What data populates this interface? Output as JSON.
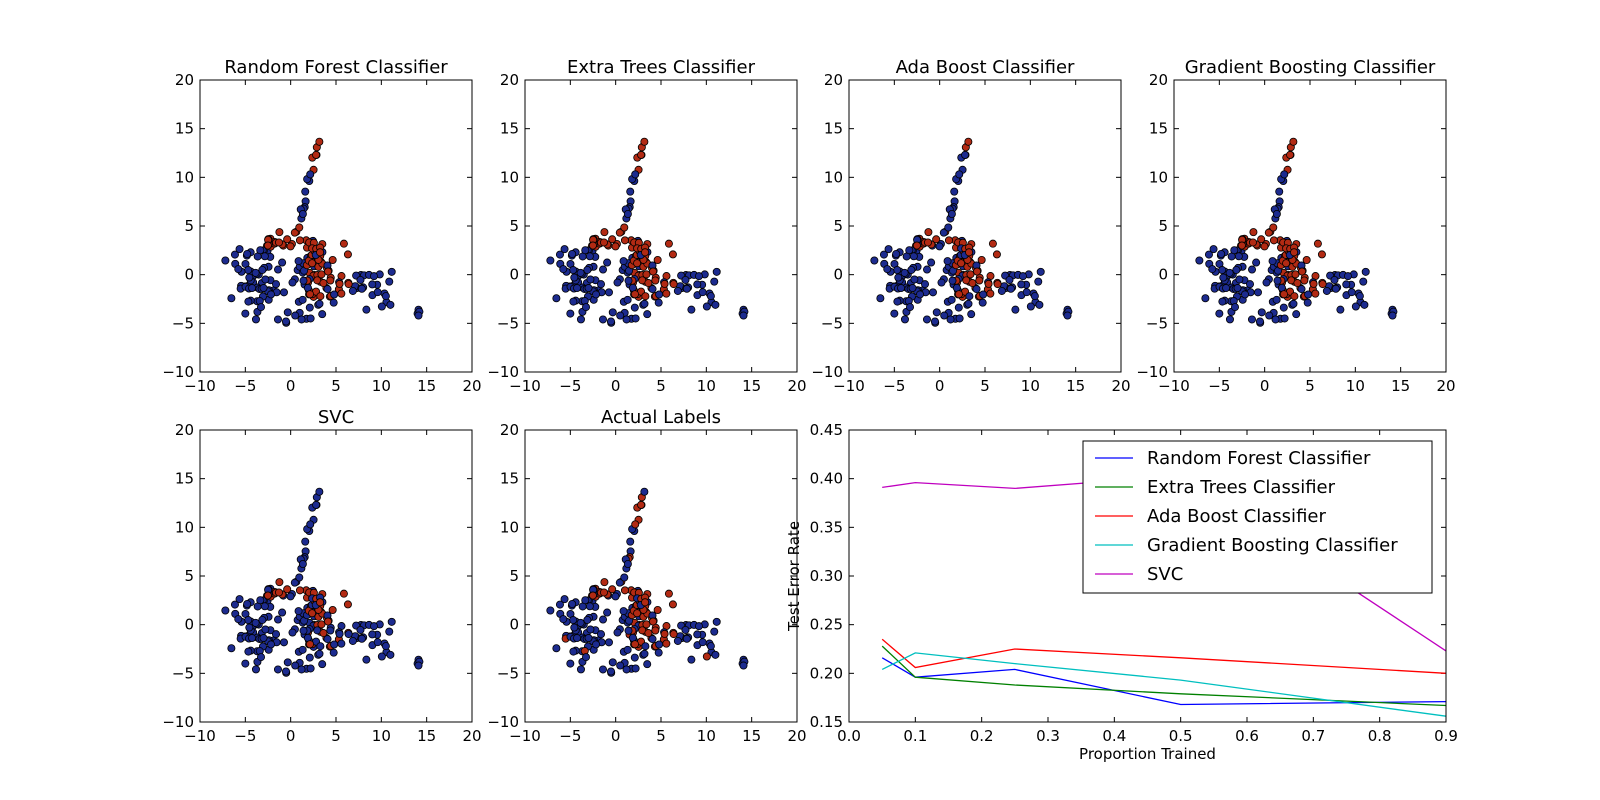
{
  "chart_data": [
    {
      "type": "scatter",
      "title": "Random Forest Classifier",
      "xlabel": "",
      "ylabel": "",
      "xlim": [
        -10,
        20
      ],
      "ylim": [
        -10,
        20
      ],
      "xticks": [
        "−10",
        "−5",
        "0",
        "5",
        "10",
        "15",
        "20"
      ],
      "yticks": [
        "−10",
        "−5",
        "0",
        "5",
        "10",
        "15",
        "20"
      ],
      "grid": false,
      "class_colors": {
        "0": "#1c2b8f",
        "1": "#b22a13"
      }
    },
    {
      "type": "scatter",
      "title": "Extra Trees Classifier",
      "xlabel": "",
      "ylabel": "",
      "xlim": [
        -10,
        20
      ],
      "ylim": [
        -10,
        20
      ],
      "xticks": [
        "−10",
        "−5",
        "0",
        "5",
        "10",
        "15",
        "20"
      ],
      "yticks": [
        "−10",
        "−5",
        "0",
        "5",
        "10",
        "15",
        "20"
      ],
      "grid": false,
      "class_colors": {
        "0": "#1c2b8f",
        "1": "#b22a13"
      }
    },
    {
      "type": "scatter",
      "title": "Ada Boost Classifier",
      "xlabel": "",
      "ylabel": "",
      "xlim": [
        -10,
        20
      ],
      "ylim": [
        -10,
        20
      ],
      "xticks": [
        "−10",
        "−5",
        "0",
        "5",
        "10",
        "15",
        "20"
      ],
      "yticks": [
        "−10",
        "−5",
        "0",
        "5",
        "10",
        "15",
        "20"
      ],
      "grid": false,
      "class_colors": {
        "0": "#1c2b8f",
        "1": "#b22a13"
      }
    },
    {
      "type": "scatter",
      "title": "Gradient Boosting Classifier",
      "xlabel": "",
      "ylabel": "",
      "xlim": [
        -10,
        20
      ],
      "ylim": [
        -10,
        20
      ],
      "xticks": [
        "−10",
        "−5",
        "0",
        "5",
        "10",
        "15",
        "20"
      ],
      "yticks": [
        "−10",
        "−5",
        "0",
        "5",
        "10",
        "15",
        "20"
      ],
      "grid": false,
      "class_colors": {
        "0": "#1c2b8f",
        "1": "#b22a13"
      }
    },
    {
      "type": "scatter",
      "title": "SVC",
      "xlabel": "",
      "ylabel": "",
      "xlim": [
        -10,
        20
      ],
      "ylim": [
        -10,
        20
      ],
      "xticks": [
        "−10",
        "−5",
        "0",
        "5",
        "10",
        "15",
        "20"
      ],
      "yticks": [
        "−10",
        "−5",
        "0",
        "5",
        "10",
        "15",
        "20"
      ],
      "grid": false,
      "class_colors": {
        "0": "#1c2b8f",
        "1": "#b22a13"
      }
    },
    {
      "type": "scatter",
      "title": "Actual Labels",
      "xlabel": "",
      "ylabel": "",
      "xlim": [
        -10,
        20
      ],
      "ylim": [
        -10,
        20
      ],
      "xticks": [
        "−10",
        "−5",
        "0",
        "5",
        "10",
        "15",
        "20"
      ],
      "yticks": [
        "−10",
        "−5",
        "0",
        "5",
        "10",
        "15",
        "20"
      ],
      "grid": false,
      "class_colors": {
        "0": "#1c2b8f",
        "1": "#b22a13"
      }
    },
    {
      "type": "line",
      "title": "",
      "xlabel": "Proportion Trained",
      "ylabel": "Test Error Rate",
      "xlim": [
        0.0,
        0.9
      ],
      "ylim": [
        0.15,
        0.45
      ],
      "xticks": [
        "0.0",
        "0.1",
        "0.2",
        "0.3",
        "0.4",
        "0.5",
        "0.6",
        "0.7",
        "0.8",
        "0.9"
      ],
      "yticks": [
        "0.15",
        "0.20",
        "0.25",
        "0.30",
        "0.35",
        "0.40",
        "0.45"
      ],
      "grid": false,
      "legend_position": "top-right",
      "series": [
        {
          "name": "Random Forest Classifier",
          "color": "#0000ff",
          "x": [
            0.05,
            0.1,
            0.25,
            0.5,
            0.9
          ],
          "y": [
            0.216,
            0.196,
            0.204,
            0.168,
            0.171
          ]
        },
        {
          "name": "Extra Trees Classifier",
          "color": "#008000",
          "x": [
            0.05,
            0.1,
            0.25,
            0.5,
            0.9
          ],
          "y": [
            0.228,
            0.196,
            0.188,
            0.179,
            0.167
          ]
        },
        {
          "name": "Ada Boost Classifier",
          "color": "#ff0000",
          "x": [
            0.05,
            0.1,
            0.25,
            0.5,
            0.9
          ],
          "y": [
            0.235,
            0.206,
            0.225,
            0.216,
            0.2
          ]
        },
        {
          "name": "Gradient Boosting Classifier",
          "color": "#00bfbf",
          "x": [
            0.05,
            0.1,
            0.25,
            0.5,
            0.9
          ],
          "y": [
            0.204,
            0.221,
            0.21,
            0.193,
            0.156
          ]
        },
        {
          "name": "SVC",
          "color": "#bf00bf",
          "x": [
            0.05,
            0.1,
            0.25,
            0.5,
            0.9
          ],
          "y": [
            0.391,
            0.396,
            0.39,
            0.403,
            0.223
          ]
        }
      ]
    }
  ]
}
